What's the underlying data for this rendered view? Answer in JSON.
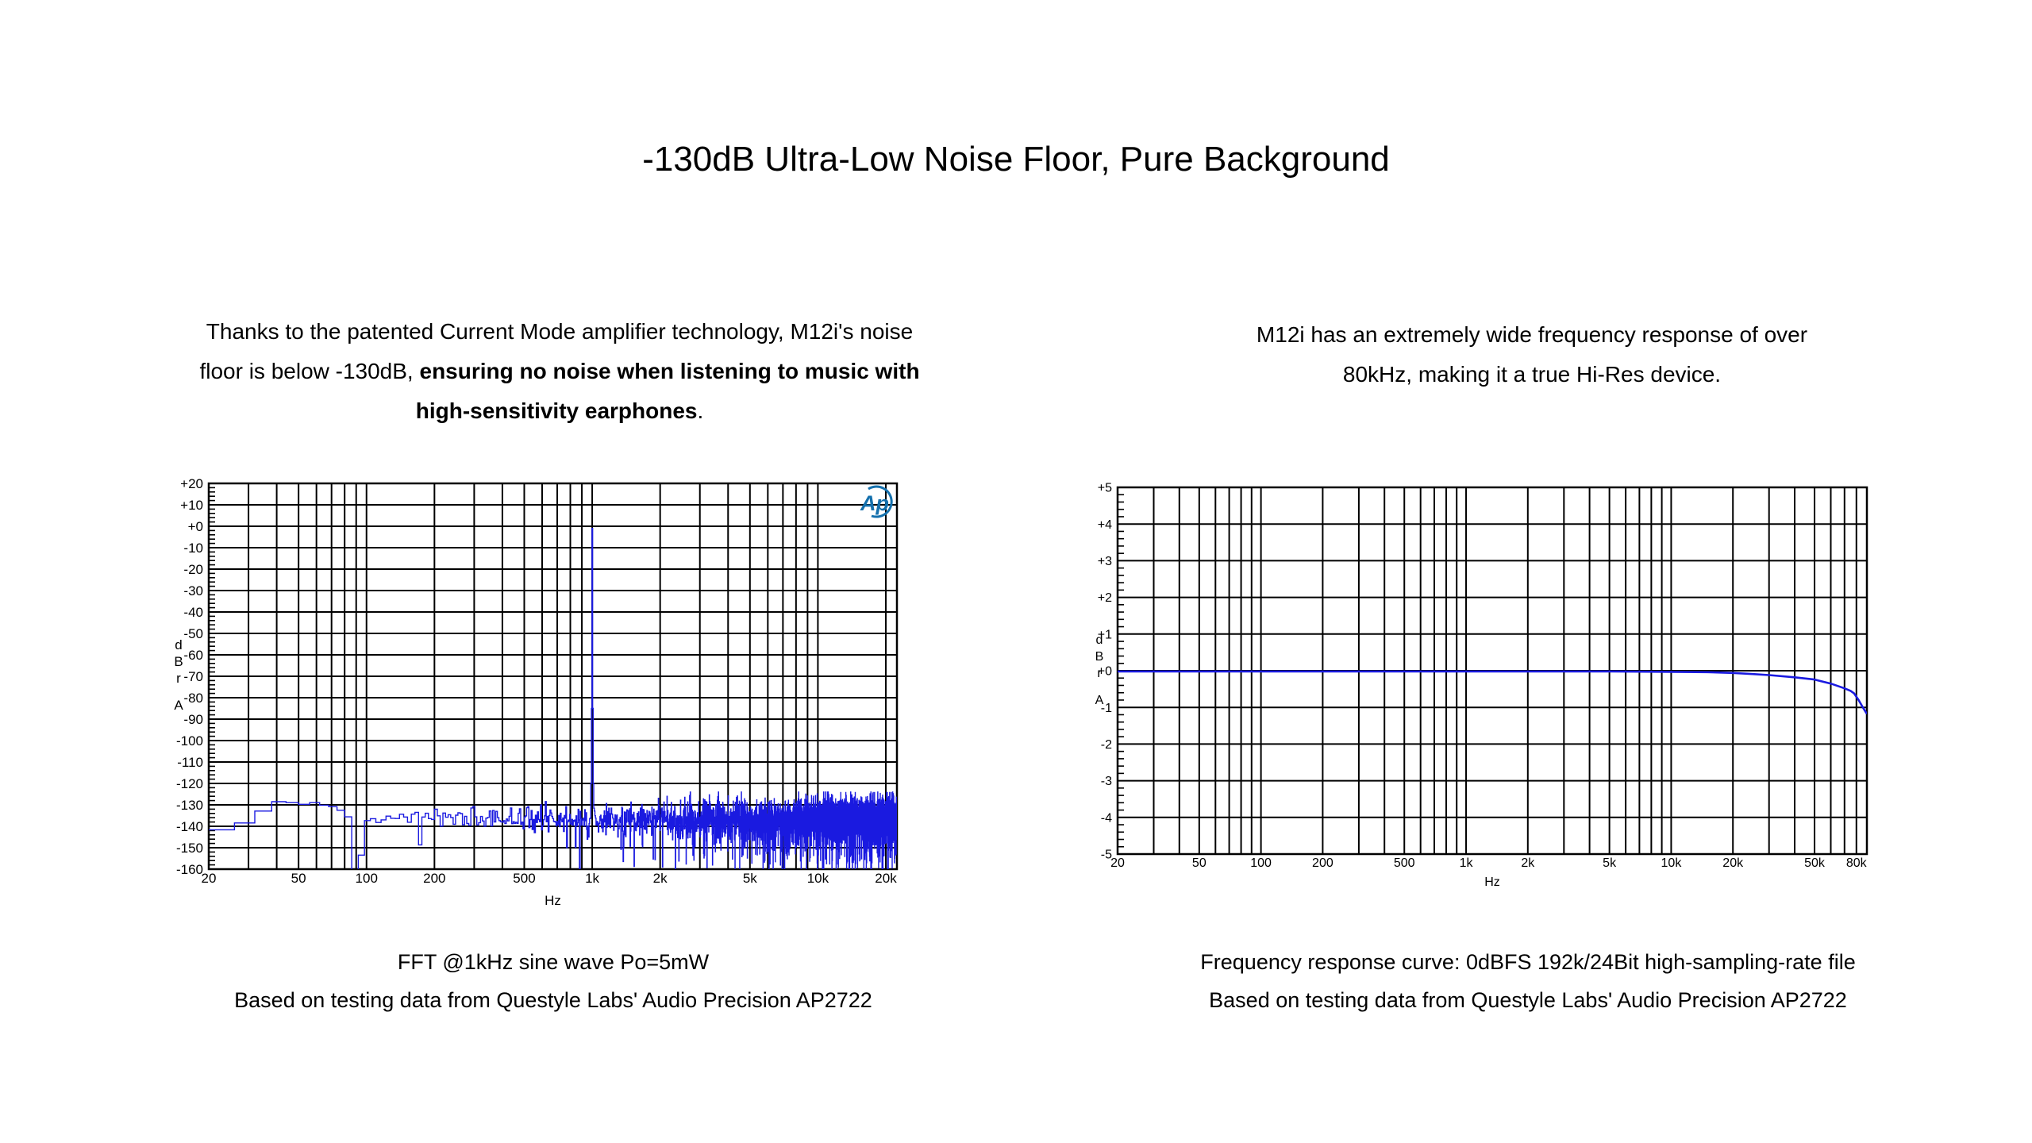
{
  "page": {
    "title": "-130dB Ultra-Low Noise Floor, Pure Background",
    "background_color": "#ffffff",
    "text_color": "#000000"
  },
  "intro_left": {
    "lines": [
      [
        {
          "t": "Thanks to the patented Current Mode amplifier technology, M12i's noise",
          "b": false
        }
      ],
      [
        {
          "t": "floor is below -130dB, ",
          "b": false
        },
        {
          "t": "ensuring no noise when listening to music with",
          "b": true
        }
      ],
      [
        {
          "t": "high-sensitivity earphones",
          "b": true
        },
        {
          "t": ".",
          "b": false
        }
      ]
    ]
  },
  "intro_right": {
    "lines": [
      [
        {
          "t": "M12i has an extremely wide frequency response of over",
          "b": false
        }
      ],
      [
        {
          "t": "80kHz, making it a true Hi-Res device.",
          "b": false
        }
      ]
    ]
  },
  "caption_left": {
    "lines": [
      "FFT @1kHz sine wave Po=5mW",
      "Based on testing data from Questyle Labs' Audio Precision AP2722"
    ]
  },
  "caption_right": {
    "lines": [
      "Frequency response curve: 0dBFS 192k/24Bit high-sampling-rate file",
      "Based on testing data from Questyle Labs' Audio Precision AP2722"
    ]
  },
  "colors": {
    "trace_blue": "#1a1ae0",
    "grid_black": "#000000",
    "ap_logo_blue": "#1470ad"
  },
  "chart_data": [
    {
      "id": "fft",
      "type": "line",
      "title": "FFT @1kHz sine wave Po=5mW",
      "xlabel": "Hz",
      "ylabel": "dBrA",
      "ylabel_stack": [
        "d",
        "B",
        "r",
        "A"
      ],
      "x_scale": "log",
      "x_range": [
        20,
        22400
      ],
      "x_ticks": [
        {
          "v": 20,
          "l": "20"
        },
        {
          "v": 50,
          "l": "50"
        },
        {
          "v": 100,
          "l": "100"
        },
        {
          "v": 200,
          "l": "200"
        },
        {
          "v": 500,
          "l": "500"
        },
        {
          "v": 1000,
          "l": "1k"
        },
        {
          "v": 2000,
          "l": "2k"
        },
        {
          "v": 5000,
          "l": "5k"
        },
        {
          "v": 10000,
          "l": "10k"
        },
        {
          "v": 20000,
          "l": "20k"
        }
      ],
      "y_range": [
        -160,
        20
      ],
      "y_major_step": 10,
      "y_minor_step": 2,
      "y_tick_labels": [
        "+20",
        "+10",
        "+0",
        "-10",
        "-20",
        "-30",
        "-40",
        "-50",
        "-60",
        "-70",
        "-80",
        "-90",
        "-100",
        "-110",
        "-120",
        "-130",
        "-140",
        "-150",
        "-160"
      ],
      "grid": true,
      "legend": "none",
      "logo_text": "Ap",
      "signal": {
        "fundamental_hz": 1000,
        "fundamental_db": -1,
        "fft_bin_hz": 6,
        "noise_floor_envelope": [
          [
            20,
            -143
          ],
          [
            23,
            -141
          ],
          [
            26,
            -138
          ],
          [
            30,
            -135.5
          ],
          [
            34,
            -130.5
          ],
          [
            36,
            -128.5
          ],
          [
            46,
            -128.5
          ],
          [
            50,
            -129.5
          ],
          [
            55,
            -130
          ],
          [
            68,
            -130.5
          ],
          [
            74,
            -133
          ],
          [
            80,
            -135
          ],
          [
            84,
            -135
          ],
          [
            85.5,
            -172
          ],
          [
            91,
            -172
          ],
          [
            93,
            -136
          ],
          [
            110,
            -137
          ],
          [
            150,
            -135
          ],
          [
            300,
            -136
          ],
          [
            1000,
            -137
          ],
          [
            5000,
            -137
          ],
          [
            22400,
            -136
          ]
        ],
        "noise_sigma_vs_freq": [
          [
            20,
            0.5
          ],
          [
            100,
            0.8
          ],
          [
            200,
            2.0
          ],
          [
            500,
            3.0
          ],
          [
            1000,
            3.5
          ],
          [
            3000,
            4.5
          ],
          [
            22400,
            5.0
          ]
        ],
        "clip_floor_db": -160.6,
        "noise_cap_db": -124,
        "seed": 7
      }
    },
    {
      "id": "freq-response",
      "type": "line",
      "title": "Frequency response curve: 0dBFS 192k/24Bit high-sampling-rate file",
      "xlabel": "Hz",
      "ylabel": "dBrA",
      "ylabel_stack": [
        "d",
        "B",
        "r",
        "A"
      ],
      "x_scale": "log",
      "x_range": [
        20,
        90000
      ],
      "x_ticks": [
        {
          "v": 20,
          "l": "20"
        },
        {
          "v": 50,
          "l": "50"
        },
        {
          "v": 100,
          "l": "100"
        },
        {
          "v": 200,
          "l": "200"
        },
        {
          "v": 500,
          "l": "500"
        },
        {
          "v": 1000,
          "l": "1k"
        },
        {
          "v": 2000,
          "l": "2k"
        },
        {
          "v": 5000,
          "l": "5k"
        },
        {
          "v": 10000,
          "l": "10k"
        },
        {
          "v": 20000,
          "l": "20k"
        },
        {
          "v": 50000,
          "l": "50k"
        },
        {
          "v": 80000,
          "l": "80k"
        }
      ],
      "y_range": [
        -5,
        5
      ],
      "y_major_step": 1,
      "y_minor_step": 0.2,
      "y_tick_labels": [
        "+5",
        "+4",
        "+3",
        "+2",
        "+1",
        "+0",
        "-1",
        "-2",
        "-3",
        "-4",
        "-5"
      ],
      "grid": true,
      "legend": "none",
      "response_points": [
        [
          20,
          -0.02
        ],
        [
          100,
          -0.02
        ],
        [
          1000,
          -0.02
        ],
        [
          5000,
          -0.02
        ],
        [
          10000,
          -0.03
        ],
        [
          15000,
          -0.04
        ],
        [
          20000,
          -0.06
        ],
        [
          25000,
          -0.09
        ],
        [
          30000,
          -0.12
        ],
        [
          40000,
          -0.18
        ],
        [
          50000,
          -0.24
        ],
        [
          60000,
          -0.35
        ],
        [
          70000,
          -0.48
        ],
        [
          75000,
          -0.55
        ],
        [
          78000,
          -0.62
        ],
        [
          82000,
          -0.8
        ],
        [
          86000,
          -1.0
        ],
        [
          90000,
          -1.18
        ]
      ]
    }
  ]
}
